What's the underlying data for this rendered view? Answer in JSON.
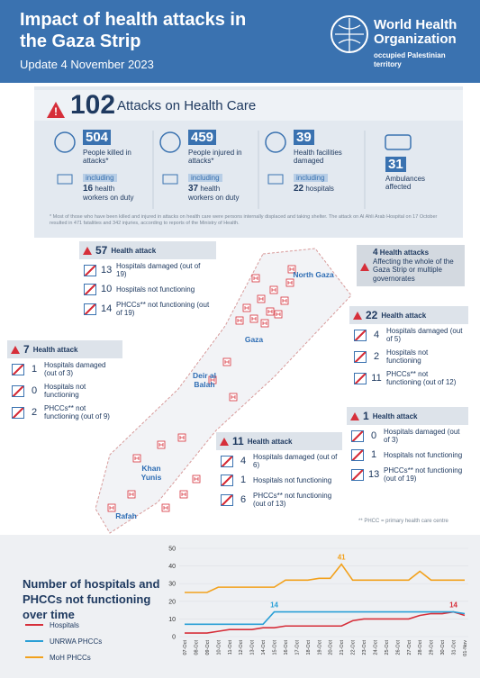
{
  "header": {
    "title": "Impact of health attacks in the Gaza Strip",
    "subtitle": "Update 4 November 2023",
    "org": "World Health Organization",
    "org_unit": "occupied Palestinian territory"
  },
  "summary": {
    "count": 102,
    "label": "Attacks on Health Care",
    "stats": [
      {
        "value": 504,
        "label": "People killed in attacks*",
        "including": "including",
        "sub_value": 16,
        "sub_label": "health workers on duty"
      },
      {
        "value": 459,
        "label": "People injured in attacks*",
        "including": "including",
        "sub_value": 37,
        "sub_label": "health workers on duty"
      },
      {
        "value": 39,
        "label": "Health facilities damaged",
        "including": "including",
        "sub_value": 22,
        "sub_label": "hospitals"
      },
      {
        "value": 31,
        "label": "Ambulances affected"
      }
    ],
    "footnote": "* Most of those who have been killed and injured in attacks on health care were persons internally displaced and taking shelter. The attack on Al Ahli Arab Hospital on 17 October resulted in 471 fatalities and 342 injuries, according to reports of the Ministry of Health."
  },
  "regions": [
    {
      "name": "North Gaza",
      "count": 57,
      "heading": "Health attack",
      "rows": [
        {
          "value": 13,
          "label": "Hospitals damaged (out of 19)"
        },
        {
          "value": 10,
          "label": "Hospitals not functioning"
        },
        {
          "value": 14,
          "label": "PHCCs** not functioning (out of 19)"
        }
      ]
    },
    {
      "name": "Gaza",
      "count": 22,
      "heading": "Health attack",
      "rows": [
        {
          "value": 4,
          "label": "Hospitals damaged (out of 5)"
        },
        {
          "value": 2,
          "label": "Hospitals not functioning"
        },
        {
          "value": 11,
          "label": "PHCCs** not functioning (out of 12)"
        }
      ]
    },
    {
      "name": "Rafah",
      "count": 7,
      "heading": "Health attack",
      "rows": [
        {
          "value": 1,
          "label": "Hospitals damaged (out of 3)"
        },
        {
          "value": 0,
          "label": "Hospitals not functioning"
        },
        {
          "value": 2,
          "label": "PHCCs** not functioning (out of 9)"
        }
      ]
    },
    {
      "name": "Deir al Balah",
      "count": 1,
      "heading": "Health attack",
      "rows": [
        {
          "value": 0,
          "label": "Hospitals damaged (out of 3)"
        },
        {
          "value": 1,
          "label": "Hospitals not functioning"
        },
        {
          "value": 13,
          "label": "PHCCs** not functioning (out of 19)"
        }
      ]
    },
    {
      "name": "Khan Yunis",
      "count": 11,
      "heading": "Health attack",
      "rows": [
        {
          "value": 4,
          "label": "Hospitals damaged (out of 6)"
        },
        {
          "value": 1,
          "label": "Hospitals not functioning"
        },
        {
          "value": 6,
          "label": "PHCCs** not functioning (out of 13)"
        }
      ]
    }
  ],
  "multi": {
    "count": 4,
    "heading": "Health attacks",
    "text": "Affecting the whole of the Gaza Strip or multiple governorates"
  },
  "note": "** PHCC = primary health care centre",
  "chart_data": {
    "type": "line",
    "title": "Number of hospitals and PHCCs not functioning over time",
    "categories": [
      "07-Oct",
      "08-Oct",
      "09-Oct",
      "10-Oct",
      "11-Oct",
      "12-Oct",
      "13-Oct",
      "14-Oct",
      "15-Oct",
      "16-Oct",
      "17-Oct",
      "18-Oct",
      "19-Oct",
      "20-Oct",
      "21-Oct",
      "22-Oct",
      "23-Oct",
      "24-Oct",
      "25-Oct",
      "26-Oct",
      "27-Oct",
      "28-Oct",
      "29-Oct",
      "30-Oct",
      "31-Oct",
      "01-Nov"
    ],
    "series": [
      {
        "name": "Hospitals",
        "color": "#d62f3a",
        "values": [
          2,
          2,
          2,
          3,
          4,
          4,
          4,
          5,
          5,
          6,
          6,
          6,
          6,
          6,
          6,
          9,
          10,
          10,
          10,
          10,
          10,
          12,
          13,
          13,
          14,
          12
        ]
      },
      {
        "name": "UNRWA PHCCs",
        "color": "#2a9fd6",
        "values": [
          7,
          7,
          7,
          7,
          7,
          7,
          7,
          7,
          14,
          14,
          14,
          14,
          14,
          14,
          14,
          14,
          14,
          14,
          14,
          14,
          14,
          14,
          14,
          14,
          14,
          13
        ]
      },
      {
        "name": "MoH PHCCs",
        "color": "#f2a11c",
        "values": [
          25,
          25,
          25,
          28,
          28,
          28,
          28,
          28,
          28,
          32,
          32,
          32,
          33,
          33,
          41,
          32,
          32,
          32,
          32,
          32,
          32,
          37,
          32,
          32,
          32,
          32
        ]
      }
    ],
    "ylim": [
      0,
      50
    ],
    "yticks": [
      0,
      10,
      20,
      30,
      40,
      50
    ],
    "grid": true,
    "label_max": true
  }
}
